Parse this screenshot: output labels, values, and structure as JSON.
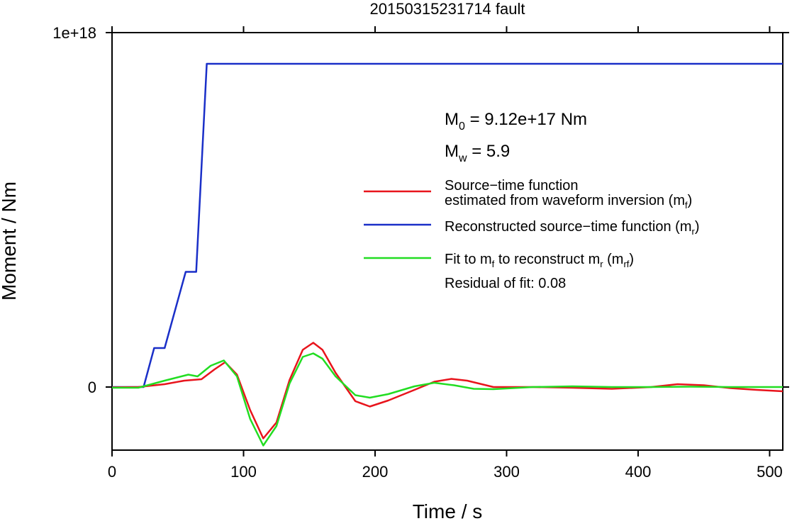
{
  "chart_data": {
    "type": "line",
    "title": "20150315231714 fault",
    "xlabel": "Time / s",
    "ylabel": "Moment / Nm",
    "xlim": [
      0,
      510
    ],
    "ylim": [
      -1.8e+17,
      1e+18
    ],
    "x_ticks": [
      0,
      100,
      200,
      300,
      400,
      500
    ],
    "x_tick_labels": [
      "0",
      "100",
      "200",
      "300",
      "400",
      "500"
    ],
    "y_ticks": [
      0,
      1e+18
    ],
    "y_tick_labels": [
      "0",
      "1e+18"
    ],
    "grid": false,
    "legend_position": "right",
    "annotations": {
      "m0_label": "M",
      "m0_sub": "0",
      "m0_value": " = 9.12e+17 Nm",
      "mw_label": "M",
      "mw_sub": "w",
      "mw_value": " = 5.9",
      "residual": "Residual of fit: 0.08"
    },
    "legend": [
      {
        "color": "#e8141c",
        "line1": "Source−time function",
        "line2_prefix": "estimated from waveform inversion (m",
        "line2_sub": "f",
        "line2_suffix": ")"
      },
      {
        "color": "#1a2fc8",
        "line1_prefix": "Reconstructed source−time function (m",
        "line1_sub": "r",
        "line1_suffix": ")"
      },
      {
        "color": "#22dd22",
        "p1": "Fit to m",
        "s1": "f",
        "p2": " to reconstruct m",
        "s2": "r",
        "p3": " (m",
        "s3": "rf",
        "p4": ")"
      }
    ],
    "series": [
      {
        "color": "#1a2fc8",
        "x": [
          0,
          24,
          32,
          40,
          56,
          64,
          72,
          510
        ],
        "y": [
          0,
          0,
          1.1e+17,
          1.1e+17,
          3.25e+17,
          3.25e+17,
          9.12e+17,
          9.12e+17
        ]
      },
      {
        "color": "#e8141c",
        "x": [
          0,
          20,
          40,
          55,
          68,
          78,
          86,
          95,
          105,
          115,
          125,
          135,
          145,
          153,
          160,
          170,
          185,
          196,
          210,
          230,
          245,
          258,
          270,
          290,
          320,
          350,
          380,
          410,
          430,
          450,
          470,
          490,
          510
        ],
        "y": [
          -1000000000000000.0,
          0.0,
          8000000000000000.0,
          1.8e+16,
          2.2e+16,
          5e+16,
          7e+16,
          3.5e+16,
          -6.5e+16,
          -1.45e+17,
          -1e+17,
          2e+16,
          1.05e+17,
          1.25e+17,
          1.05e+17,
          4e+16,
          -4e+16,
          -5.5e+16,
          -3.8e+16,
          -8000000000000000.0,
          1.5e+16,
          2.3e+16,
          1.8e+16,
          0.0,
          0.0,
          -2000000000000000.0,
          -5000000000000000.0,
          0.0,
          8000000000000000.0,
          5000000000000000.0,
          -3000000000000000.0,
          -8000000000000000.0,
          -1.2e+16
        ]
      },
      {
        "color": "#22dd22",
        "x": [
          0,
          20,
          40,
          58,
          65,
          75,
          85,
          95,
          105,
          115,
          125,
          135,
          145,
          153,
          160,
          170,
          185,
          196,
          210,
          230,
          245,
          260,
          275,
          290,
          320,
          350,
          380,
          410,
          440,
          470,
          510
        ],
        "y": [
          -2000000000000000.0,
          -2000000000000000.0,
          1.8e+16,
          3.5e+16,
          3e+16,
          6e+16,
          7.5e+16,
          3e+16,
          -9e+16,
          -1.65e+17,
          -1.1e+17,
          1e+16,
          8.5e+16,
          9.5e+16,
          8e+16,
          3e+16,
          -2.3e+16,
          -3e+16,
          -2e+16,
          2000000000000000.0,
          1.2e+16,
          5000000000000000.0,
          -5000000000000000.0,
          -6000000000000000.0,
          0.0,
          2000000000000000.0,
          0.0,
          0.0,
          1000000000000000.0,
          0.0,
          0.0
        ]
      }
    ]
  }
}
